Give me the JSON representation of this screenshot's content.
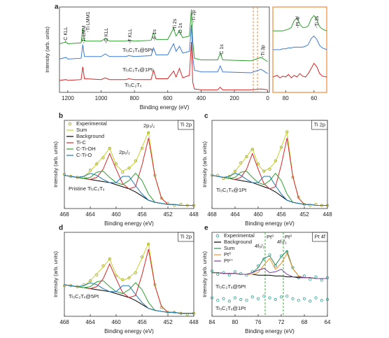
{
  "chart_data": [
    {
      "type": "line",
      "panel": "a",
      "xlabel": "Binding energy (eV)",
      "ylabel": "Intensity (arb. units)",
      "x": [
        1250,
        1210,
        1200,
        1120,
        1110,
        1100,
        1000,
        975,
        950,
        850,
        835,
        800,
        700,
        685,
        670,
        600,
        565,
        550,
        530,
        510,
        470,
        458,
        450,
        440,
        400,
        300,
        285,
        270,
        100,
        40,
        0
      ],
      "xlim": [
        1250,
        -10
      ],
      "xticks": [
        1200,
        1000,
        800,
        600,
        400,
        200,
        0
      ],
      "ylim": [
        0,
        100
      ],
      "series": [
        {
          "name": "Ti₃C₂Tₓ@5Pt",
          "color": "#2ca02c",
          "values": [
            57,
            59,
            57,
            58,
            74,
            60,
            60,
            63,
            60,
            60,
            61,
            60,
            61,
            70,
            62,
            62,
            75,
            66,
            72,
            64,
            66,
            97,
            60,
            40,
            38,
            38,
            46,
            38,
            37,
            41,
            36
          ]
        },
        {
          "name": "Ti₃C₂Tₓ@1Pt",
          "color": "#3b7bd4",
          "values": [
            39,
            41,
            39,
            40,
            56,
            42,
            42,
            45,
            42,
            42,
            43,
            42,
            43,
            52,
            44,
            44,
            57,
            48,
            54,
            46,
            48,
            79,
            42,
            26,
            24,
            24,
            31,
            24,
            23,
            27,
            22
          ]
        },
        {
          "name": "Ti₃C₂Tₓ",
          "color": "#d62728",
          "values": [
            14,
            15,
            14,
            15,
            30,
            16,
            15,
            17,
            15,
            15,
            16,
            15,
            15,
            26,
            16,
            16,
            25,
            18,
            28,
            17,
            20,
            59,
            12,
            4,
            3,
            3,
            6,
            3,
            3,
            4,
            3
          ]
        }
      ],
      "annotations": [
        "-C KLL",
        "-Ti LMM1",
        "-Ti LMM",
        "-O KLL",
        "-F KLL",
        "-F 1s",
        "-Ti 2s",
        "-O 1s",
        "-Ti 2p",
        "-C 1s",
        "-Ti 3p"
      ],
      "annotation_orientation": "vertical",
      "series_labels": true
    },
    {
      "type": "line",
      "x": [
        89,
        86,
        84,
        82,
        80,
        78,
        76,
        74,
        72,
        70,
        68,
        66,
        64,
        62,
        60,
        58,
        56,
        54,
        51
      ],
      "xlim": [
        89,
        51
      ],
      "xticks": [
        80,
        60
      ],
      "ylim": [
        0,
        100
      ],
      "frame_color": "#f08a3c",
      "series": [
        {
          "color": "#2ca02c",
          "values": [
            72,
            72,
            72,
            72,
            73,
            74,
            76,
            84,
            87,
            80,
            76,
            76,
            78,
            86,
            90,
            85,
            77,
            74,
            72
          ]
        },
        {
          "color": "#3b7bd4",
          "values": [
            50,
            50,
            50,
            51,
            51,
            52,
            52,
            53,
            53,
            53,
            53,
            54,
            56,
            63,
            66,
            62,
            55,
            52,
            50
          ]
        },
        {
          "color": "#d62728",
          "values": [
            18,
            20,
            17,
            19,
            18,
            21,
            17,
            20,
            18,
            22,
            19,
            18,
            22,
            28,
            34,
            30,
            22,
            19,
            18
          ]
        }
      ],
      "annotations": [
        "-Pt 4f",
        "-Ti 3s"
      ],
      "annotation_orientation": "vertical"
    },
    {
      "type": "line",
      "panel": "b",
      "tag": "Ti 2p",
      "xlabel": "Binding energy (eV)",
      "ylabel": "Intensity (arb. units)",
      "x": [
        468,
        467,
        466,
        465,
        464,
        463,
        462,
        461,
        460,
        459,
        458,
        457,
        456,
        455,
        454,
        453,
        452,
        451,
        450,
        449,
        448
      ],
      "xlim": [
        468,
        448
      ],
      "xticks": [
        468,
        464,
        460,
        456,
        452,
        448
      ],
      "ylim": [
        0,
        85
      ],
      "legend": "upper left",
      "series": [
        {
          "name": "Experimental",
          "mode": "markers",
          "color": "#9a9a1e",
          "values": [
            33,
            31,
            30,
            30,
            37,
            43,
            49,
            58,
            43,
            35,
            39,
            46,
            58,
            73,
            32,
            10,
            5,
            3,
            4,
            3,
            3
          ]
        },
        {
          "name": "Sum",
          "color": "#c3d12a",
          "values": [
            32,
            31,
            30,
            31,
            36,
            43,
            50,
            58,
            42,
            36,
            39,
            45,
            59,
            74,
            31,
            10,
            4,
            4,
            3,
            3,
            3
          ]
        },
        {
          "name": "Background",
          "color": "#000000",
          "values": [
            32,
            31,
            30,
            29,
            28,
            27,
            26,
            25,
            23,
            21,
            19,
            16,
            12,
            8,
            6,
            5,
            4,
            4,
            3,
            3,
            3
          ]
        },
        {
          "name": "Ti-C",
          "color": "#d62728",
          "values": [
            32,
            31,
            30,
            29,
            28,
            30,
            38,
            53,
            38,
            24,
            19,
            21,
            42,
            68,
            31,
            10,
            4,
            4,
            3,
            3,
            3
          ]
        },
        {
          "name": "C-Ti-OH",
          "color": "#2ca02c",
          "values": [
            32,
            31,
            30,
            29,
            30,
            35,
            36,
            30,
            25,
            23,
            27,
            34,
            27,
            14,
            6,
            5,
            4,
            4,
            3,
            3,
            3
          ]
        },
        {
          "name": "C-Ti-O",
          "color": "#1f77b4",
          "values": [
            32,
            31,
            30,
            31,
            34,
            32,
            28,
            25,
            25,
            31,
            31,
            22,
            14,
            8,
            6,
            5,
            4,
            4,
            3,
            3,
            3
          ]
        }
      ],
      "annotations": [
        "2p₃/₂",
        "2p₁/₂",
        "Pristine Ti₃C₂Tₓ"
      ]
    },
    {
      "type": "line",
      "panel": "c",
      "tag": "Ti 2p",
      "xlabel": "Binding energy (eV)",
      "ylabel": "Intensity (arb. units)",
      "x": [
        468,
        467,
        466,
        465,
        464,
        463,
        462,
        461,
        460,
        459,
        458,
        457,
        456,
        455,
        454,
        453,
        452,
        451,
        450,
        449,
        448
      ],
      "xlim": [
        468,
        448
      ],
      "xticks": [
        468,
        464,
        460,
        456,
        452,
        448
      ],
      "ylim": [
        0,
        85
      ],
      "series": [
        {
          "mode": "markers",
          "color": "#9a9a1e",
          "values": [
            32,
            32,
            29,
            31,
            36,
            44,
            50,
            57,
            43,
            36,
            38,
            46,
            59,
            74,
            30,
            11,
            4,
            3,
            4,
            3,
            3
          ]
        },
        {
          "color": "#c3d12a",
          "values": [
            32,
            31,
            30,
            31,
            36,
            43,
            50,
            58,
            42,
            36,
            39,
            45,
            59,
            74,
            31,
            10,
            4,
            4,
            3,
            3,
            3
          ]
        },
        {
          "color": "#000000",
          "values": [
            32,
            31,
            30,
            29,
            28,
            27,
            26,
            25,
            23,
            21,
            19,
            16,
            12,
            8,
            6,
            5,
            4,
            4,
            3,
            3,
            3
          ]
        },
        {
          "color": "#d62728",
          "values": [
            32,
            31,
            30,
            29,
            28,
            30,
            38,
            53,
            38,
            24,
            19,
            21,
            42,
            68,
            31,
            10,
            4,
            4,
            3,
            3,
            3
          ]
        },
        {
          "color": "#2ca02c",
          "values": [
            32,
            31,
            30,
            29,
            30,
            35,
            36,
            30,
            25,
            23,
            27,
            34,
            27,
            14,
            6,
            5,
            4,
            4,
            3,
            3,
            3
          ]
        },
        {
          "color": "#1f77b4",
          "values": [
            32,
            31,
            30,
            31,
            34,
            32,
            28,
            25,
            25,
            31,
            31,
            22,
            14,
            8,
            6,
            5,
            4,
            4,
            3,
            3,
            3
          ]
        }
      ],
      "annotations": [
        "Ti₃C₂Tₓ@1Pt"
      ]
    },
    {
      "type": "line",
      "panel": "d",
      "tag": "Ti 2p",
      "xlabel": "Binding energy (eV)",
      "ylabel": "Intensity (arb. units)",
      "x": [
        468,
        467,
        466,
        465,
        464,
        463,
        462,
        461,
        460,
        459,
        458,
        457,
        456,
        455,
        454,
        453,
        452,
        451,
        450,
        449,
        448
      ],
      "xlim": [
        468,
        448
      ],
      "xticks": [
        468,
        464,
        460,
        456,
        452,
        448
      ],
      "ylim": [
        0,
        85
      ],
      "series": [
        {
          "mode": "markers",
          "color": "#9a9a1e",
          "values": [
            31,
            31,
            30,
            32,
            36,
            42,
            51,
            58,
            41,
            37,
            39,
            44,
            60,
            73,
            32,
            9,
            4,
            4,
            3,
            2,
            3
          ]
        },
        {
          "color": "#c3d12a",
          "values": [
            32,
            31,
            30,
            31,
            36,
            43,
            50,
            58,
            42,
            36,
            39,
            45,
            59,
            74,
            31,
            10,
            4,
            4,
            3,
            3,
            3
          ]
        },
        {
          "color": "#000000",
          "values": [
            32,
            31,
            30,
            29,
            28,
            27,
            26,
            25,
            23,
            21,
            19,
            16,
            12,
            8,
            6,
            5,
            4,
            4,
            3,
            3,
            3
          ]
        },
        {
          "color": "#d62728",
          "values": [
            32,
            31,
            30,
            29,
            28,
            30,
            38,
            53,
            38,
            24,
            19,
            21,
            42,
            68,
            31,
            10,
            4,
            4,
            3,
            3,
            3
          ]
        },
        {
          "color": "#2ca02c",
          "values": [
            32,
            31,
            30,
            29,
            30,
            35,
            36,
            30,
            25,
            23,
            27,
            34,
            27,
            14,
            6,
            5,
            4,
            4,
            3,
            3,
            3
          ]
        },
        {
          "color": "#1f77b4",
          "values": [
            32,
            31,
            30,
            31,
            34,
            32,
            28,
            25,
            25,
            31,
            31,
            22,
            14,
            8,
            6,
            5,
            4,
            4,
            3,
            3,
            3
          ]
        }
      ],
      "annotations": [
        "Ti₃C₂Tₓ@5Pt"
      ]
    },
    {
      "type": "line",
      "panel": "e",
      "tag": "Pt 4f",
      "xlabel": "Binding energy (eV)",
      "ylabel": "Intensity (arb. units)",
      "x": [
        84,
        83,
        82,
        81,
        80,
        79,
        78,
        77,
        76,
        75,
        74,
        73,
        72,
        71,
        70,
        69,
        68,
        67,
        66,
        65,
        64
      ],
      "xlim": [
        84,
        64
      ],
      "xticks": [
        84,
        80,
        76,
        72,
        68,
        64
      ],
      "ylim": [
        0,
        100
      ],
      "legend": "upper left",
      "series": [
        {
          "name": "Experimental",
          "mode": "markers",
          "color": "#2a9d8f",
          "values": [
            54,
            50,
            52,
            49,
            53,
            51,
            49,
            53,
            60,
            68,
            73,
            60,
            72,
            77,
            58,
            46,
            48,
            44,
            47,
            43,
            46
          ]
        },
        {
          "name": "Background",
          "color": "#000000",
          "values": [
            52,
            52,
            51,
            51,
            51,
            50,
            50,
            50,
            49,
            49,
            49,
            48,
            48,
            47,
            47,
            46,
            46,
            46,
            45,
            45,
            45
          ]
        },
        {
          "name": "Sum",
          "color": "#2e8b57",
          "values": [
            52,
            52,
            51,
            51,
            51,
            50,
            50,
            52,
            58,
            69,
            72,
            61,
            71,
            78,
            57,
            48,
            46,
            46,
            45,
            45,
            45
          ]
        },
        {
          "name": "Pt⁰",
          "color": "#f28e2b",
          "values": [
            52,
            52,
            51,
            51,
            51,
            50,
            50,
            50,
            52,
            61,
            69,
            56,
            63,
            75,
            57,
            48,
            46,
            46,
            45,
            45,
            45
          ]
        },
        {
          "name": "Pt²⁺",
          "color": "#7b3f99",
          "values": [
            52,
            52,
            51,
            51,
            51,
            50,
            50,
            52,
            55,
            57,
            52,
            53,
            56,
            50,
            47,
            47,
            46,
            46,
            45,
            45,
            45
          ]
        },
        {
          "mode": "markers",
          "color": "#2a9d8f",
          "values": [
            22,
            19,
            21,
            18,
            22,
            20,
            19,
            23,
            21,
            24,
            22,
            20,
            23,
            24,
            21,
            19,
            21,
            18,
            22,
            19,
            20
          ]
        }
      ],
      "annotations": [
        "4f₅/₂",
        "4f₇/₂",
        "Ti₃C₂Tₓ@5Pt",
        "Ti₃C₂Tₓ@1Pt"
      ],
      "reference_lines": [
        "Pt⁰",
        "Pt⁰"
      ]
    }
  ]
}
